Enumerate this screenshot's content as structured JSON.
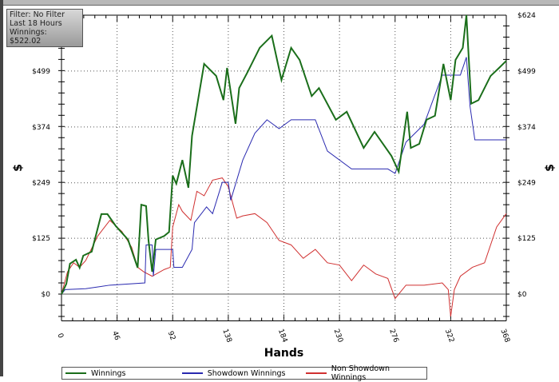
{
  "info_box": {
    "filter": "Filter: No Filter",
    "period": "Last  18 Hours",
    "winnings": "Winnings: $522.02"
  },
  "chart_data": {
    "type": "line",
    "xlabel": "Hands",
    "ylabel": "$",
    "ylabel_right": "$",
    "x_ticks": [
      "0",
      "46",
      "92",
      "138",
      "184",
      "230",
      "276",
      "322",
      "368"
    ],
    "y_ticks": [
      "$0",
      "$125",
      "$249",
      "$374",
      "$499",
      "$624"
    ],
    "xlim": [
      0,
      368
    ],
    "ylim": [
      -60,
      624
    ],
    "grid": true,
    "legend_position": "bottom",
    "series": [
      {
        "name": "Winnings",
        "color": "#1a6e1a",
        "points": [
          [
            0,
            0
          ],
          [
            4,
            23
          ],
          [
            7,
            68
          ],
          [
            12,
            77
          ],
          [
            15,
            59
          ],
          [
            18,
            86
          ],
          [
            25,
            95
          ],
          [
            33,
            179
          ],
          [
            38,
            179
          ],
          [
            45,
            152
          ],
          [
            55,
            122
          ],
          [
            63,
            59
          ],
          [
            66,
            200
          ],
          [
            70,
            197
          ],
          [
            72,
            120
          ],
          [
            75,
            50
          ],
          [
            78,
            122
          ],
          [
            85,
            130
          ],
          [
            89,
            139
          ],
          [
            92,
            265
          ],
          [
            95,
            247
          ],
          [
            100,
            300
          ],
          [
            105,
            238
          ],
          [
            108,
            354
          ],
          [
            118,
            515
          ],
          [
            128,
            488
          ],
          [
            134,
            434
          ],
          [
            137,
            506
          ],
          [
            144,
            381
          ],
          [
            147,
            461
          ],
          [
            154,
            497
          ],
          [
            164,
            551
          ],
          [
            174,
            578
          ],
          [
            182,
            479
          ],
          [
            190,
            551
          ],
          [
            197,
            524
          ],
          [
            207,
            443
          ],
          [
            213,
            461
          ],
          [
            227,
            390
          ],
          [
            236,
            408
          ],
          [
            250,
            327
          ],
          [
            259,
            363
          ],
          [
            273,
            309
          ],
          [
            279,
            274
          ],
          [
            286,
            408
          ],
          [
            289,
            327
          ],
          [
            296,
            336
          ],
          [
            302,
            390
          ],
          [
            309,
            399
          ],
          [
            316,
            515
          ],
          [
            322,
            434
          ],
          [
            326,
            524
          ],
          [
            332,
            551
          ],
          [
            335,
            624
          ],
          [
            339,
            426
          ],
          [
            345,
            434
          ],
          [
            355,
            488
          ],
          [
            362,
            506
          ],
          [
            368,
            522
          ]
        ]
      },
      {
        "name": "Showdown Winnings",
        "color": "#2a2ab0",
        "points": [
          [
            0,
            0
          ],
          [
            3,
            10
          ],
          [
            20,
            12
          ],
          [
            40,
            20
          ],
          [
            69,
            25
          ],
          [
            70,
            110
          ],
          [
            75,
            110
          ],
          [
            76,
            40
          ],
          [
            78,
            100
          ],
          [
            92,
            100
          ],
          [
            93,
            60
          ],
          [
            100,
            60
          ],
          [
            108,
            100
          ],
          [
            110,
            160
          ],
          [
            120,
            195
          ],
          [
            125,
            180
          ],
          [
            133,
            250
          ],
          [
            138,
            250
          ],
          [
            140,
            210
          ],
          [
            150,
            300
          ],
          [
            160,
            360
          ],
          [
            170,
            390
          ],
          [
            180,
            370
          ],
          [
            190,
            390
          ],
          [
            210,
            390
          ],
          [
            220,
            320
          ],
          [
            240,
            280
          ],
          [
            270,
            280
          ],
          [
            276,
            270
          ],
          [
            285,
            340
          ],
          [
            300,
            380
          ],
          [
            315,
            490
          ],
          [
            330,
            490
          ],
          [
            335,
            530
          ],
          [
            338,
            420
          ],
          [
            342,
            345
          ],
          [
            368,
            345
          ]
        ]
      },
      {
        "name": "Non Showdown Winnings",
        "color": "#d03030",
        "points": [
          [
            0,
            0
          ],
          [
            5,
            50
          ],
          [
            10,
            70
          ],
          [
            15,
            60
          ],
          [
            20,
            75
          ],
          [
            30,
            130
          ],
          [
            40,
            165
          ],
          [
            50,
            140
          ],
          [
            58,
            105
          ],
          [
            63,
            60
          ],
          [
            68,
            50
          ],
          [
            75,
            40
          ],
          [
            85,
            55
          ],
          [
            90,
            60
          ],
          [
            92,
            150
          ],
          [
            97,
            200
          ],
          [
            100,
            185
          ],
          [
            107,
            165
          ],
          [
            112,
            230
          ],
          [
            118,
            220
          ],
          [
            125,
            255
          ],
          [
            133,
            260
          ],
          [
            138,
            240
          ],
          [
            145,
            170
          ],
          [
            150,
            175
          ],
          [
            160,
            180
          ],
          [
            170,
            160
          ],
          [
            180,
            120
          ],
          [
            190,
            110
          ],
          [
            200,
            80
          ],
          [
            210,
            100
          ],
          [
            220,
            70
          ],
          [
            230,
            65
          ],
          [
            240,
            30
          ],
          [
            250,
            65
          ],
          [
            260,
            45
          ],
          [
            270,
            35
          ],
          [
            276,
            -10
          ],
          [
            285,
            20
          ],
          [
            300,
            20
          ],
          [
            315,
            25
          ],
          [
            320,
            10
          ],
          [
            322,
            -50
          ],
          [
            325,
            10
          ],
          [
            330,
            40
          ],
          [
            340,
            60
          ],
          [
            350,
            70
          ],
          [
            360,
            150
          ],
          [
            368,
            180
          ]
        ]
      }
    ]
  }
}
